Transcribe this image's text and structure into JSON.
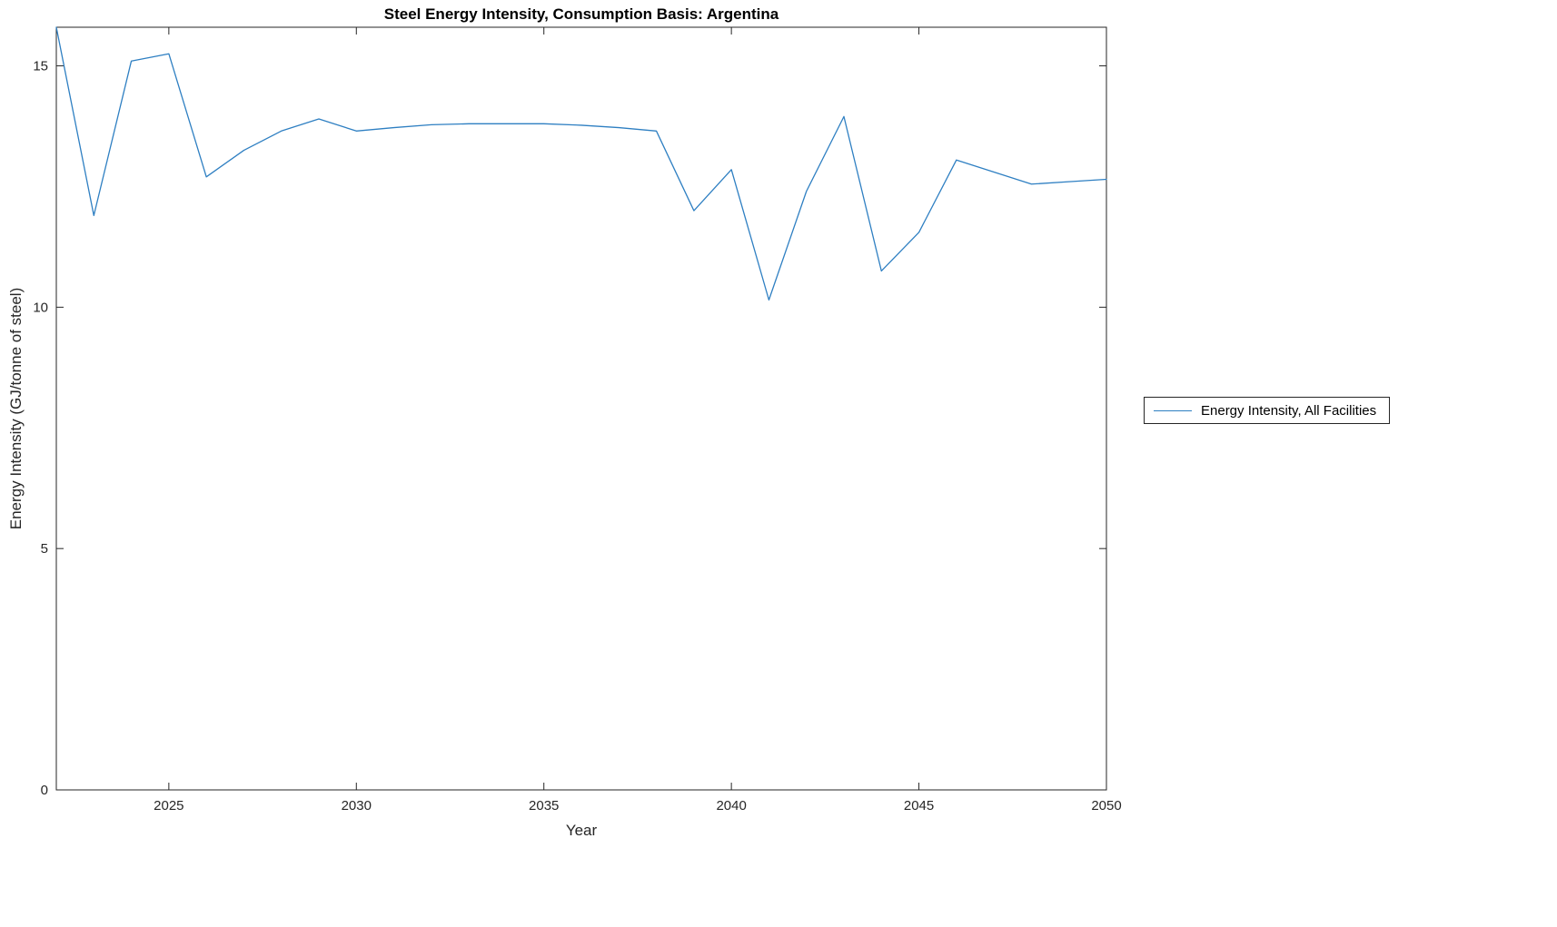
{
  "figure": {
    "title": "Steel Energy Intensity, Consumption Basis: Argentina",
    "xlabel": "Year",
    "ylabel": "Energy Intensity (GJ/tonne of steel)"
  },
  "legend": {
    "label": "Energy Intensity, All Facilities"
  },
  "colors": {
    "line": "#2e7fc2",
    "axis": "#262626",
    "background": "#ffffff"
  },
  "chart_data": {
    "type": "line",
    "title": "Steel Energy Intensity, Consumption Basis: Argentina",
    "xlabel": "Year",
    "ylabel": "Energy Intensity (GJ/tonne of steel)",
    "legend_position": "right-outside",
    "grid": false,
    "xlim": [
      2022,
      2050
    ],
    "ylim": [
      0,
      15.8
    ],
    "x_ticks": [
      2025,
      2030,
      2035,
      2040,
      2045,
      2050
    ],
    "y_ticks": [
      0,
      5,
      10,
      15
    ],
    "series": [
      {
        "name": "Energy Intensity, All Facilities",
        "x": [
          2022,
          2023,
          2024,
          2025,
          2026,
          2027,
          2028,
          2029,
          2030,
          2031,
          2032,
          2033,
          2034,
          2035,
          2036,
          2037,
          2038,
          2039,
          2040,
          2041,
          2042,
          2043,
          2044,
          2045,
          2046,
          2047,
          2048,
          2049,
          2050
        ],
        "values": [
          15.8,
          11.9,
          15.1,
          15.25,
          12.7,
          13.25,
          13.65,
          13.9,
          13.65,
          13.72,
          13.78,
          13.8,
          13.8,
          13.8,
          13.77,
          13.72,
          13.65,
          12.0,
          12.85,
          10.15,
          12.4,
          13.95,
          10.75,
          11.55,
          13.05,
          12.8,
          12.55,
          12.6,
          12.65
        ]
      }
    ]
  }
}
